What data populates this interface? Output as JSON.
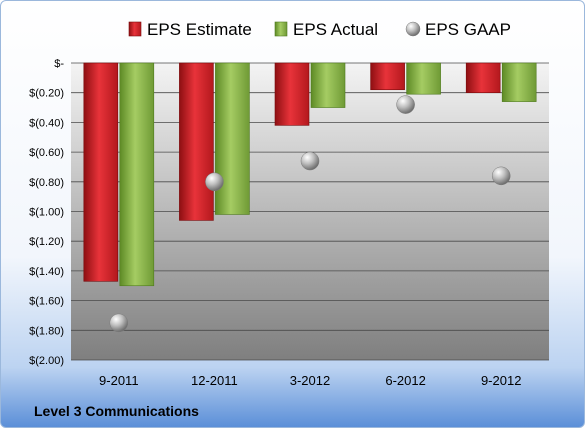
{
  "chart_data": {
    "type": "bar",
    "categories": [
      "9-2011",
      "12-2011",
      "3-2012",
      "6-2012",
      "9-2012"
    ],
    "series": [
      {
        "name": "EPS Estimate",
        "values": [
          -1.47,
          -1.06,
          -0.42,
          -0.18,
          -0.2
        ]
      },
      {
        "name": "EPS Actual",
        "values": [
          -1.5,
          -1.02,
          -0.3,
          -0.21,
          -0.26
        ]
      },
      {
        "name": "EPS GAAP",
        "values": [
          -1.75,
          -0.8,
          -0.66,
          -0.28,
          -0.76
        ],
        "style": "marker"
      }
    ],
    "ylim": [
      -2.0,
      0
    ],
    "yticks": [
      "$-",
      "$(0.20)",
      "$(0.40)",
      "$(0.60)",
      "$(0.80)",
      "$(1.00)",
      "$(1.20)",
      "$(1.40)",
      "$(1.60)",
      "$(1.80)",
      "$(2.00)"
    ],
    "ytick_values": [
      0,
      -0.2,
      -0.4,
      -0.6,
      -0.8,
      -1.0,
      -1.2,
      -1.4,
      -1.6,
      -1.8,
      -2.0
    ],
    "grid": true,
    "legend_position": "top",
    "colors": {
      "estimate": "#cc1f24",
      "actual": "#7aa63a",
      "gaap": "#a6a6a6"
    }
  },
  "footer": {
    "company": "Level 3 Communications"
  }
}
